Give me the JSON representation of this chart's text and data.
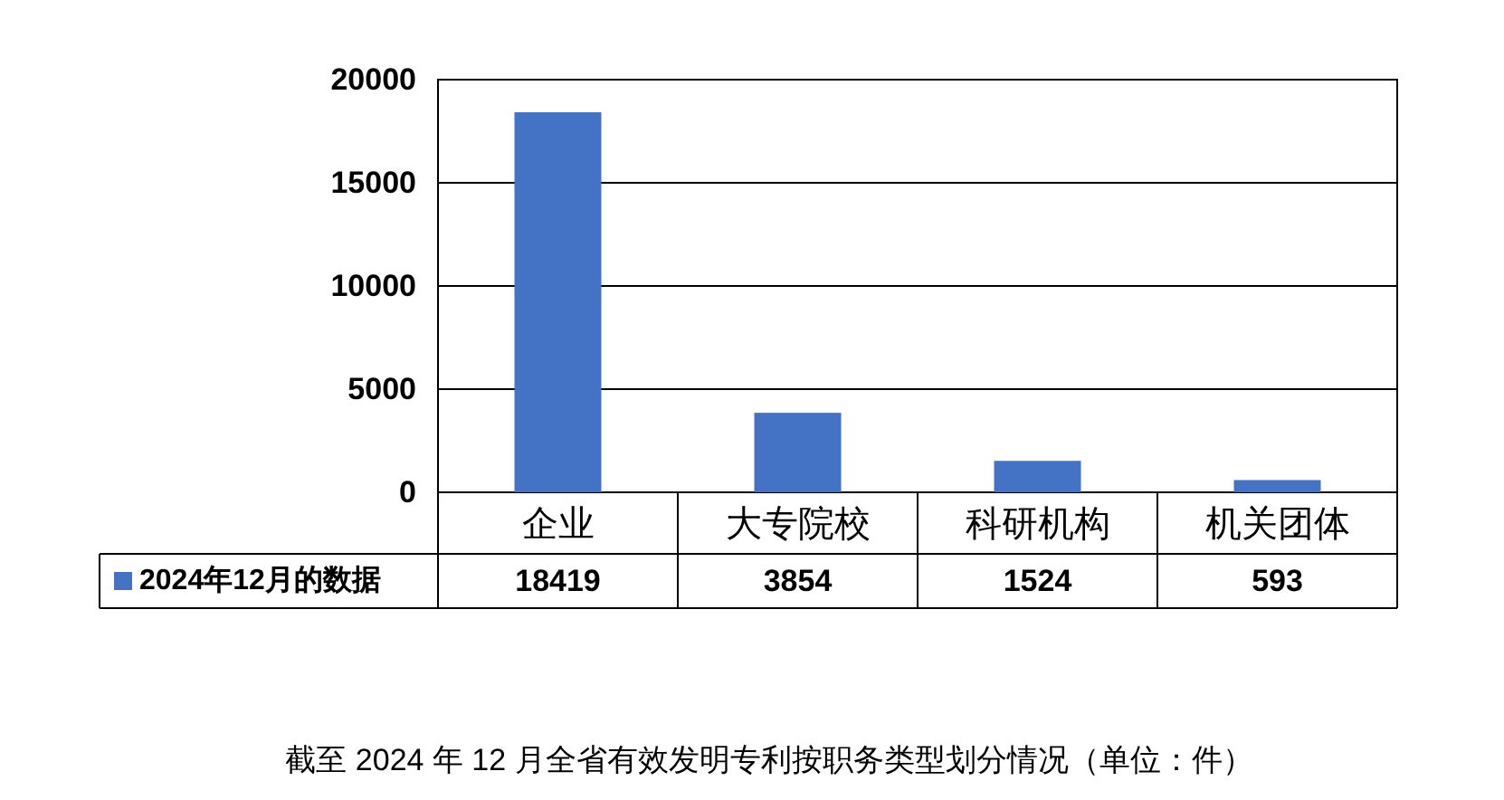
{
  "chart_data": {
    "type": "bar",
    "categories": [
      "企业",
      "大专院校",
      "科研机构",
      "机关团体"
    ],
    "series": [
      {
        "name": "2024年12月的数据",
        "color": "#4472c4",
        "values": [
          18419,
          3854,
          1524,
          593
        ]
      }
    ],
    "ylim": [
      0,
      20000
    ],
    "yticks": [
      0,
      5000,
      10000,
      15000,
      20000
    ],
    "grid": "y",
    "legend": "bottom",
    "data_labels": true,
    "annotations": [
      "截至 2024 年 12 月全省有效发明专利按职务类型划分情况（单位：件）"
    ]
  }
}
